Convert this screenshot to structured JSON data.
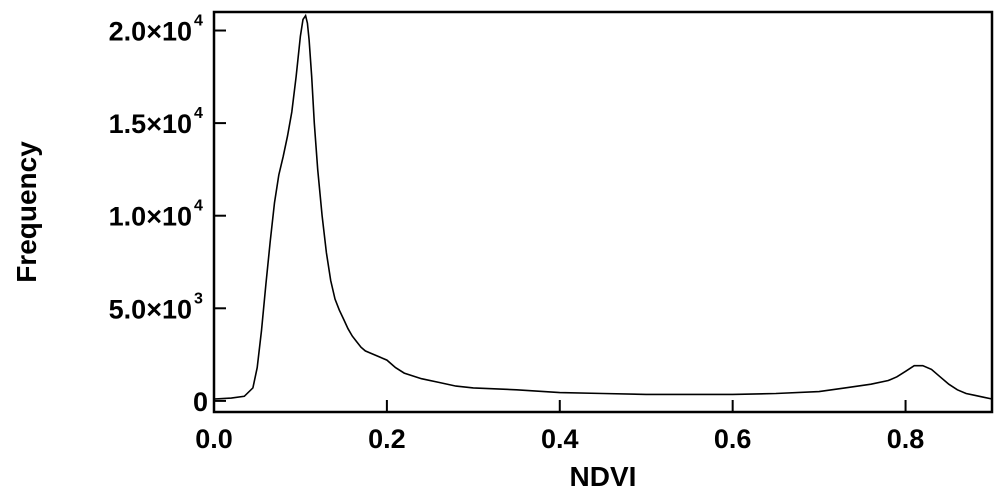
{
  "chart_data": {
    "type": "line",
    "title": "",
    "xlabel": "NDVI",
    "ylabel": "Frequency",
    "xlim": [
      0.0,
      0.9
    ],
    "ylim": [
      -600,
      21000
    ],
    "grid": false,
    "legend": "none",
    "line_color": "#000000",
    "x_ticks": [
      {
        "value": 0.0,
        "label": "0.0"
      },
      {
        "value": 0.2,
        "label": "0.2"
      },
      {
        "value": 0.4,
        "label": "0.4"
      },
      {
        "value": 0.6,
        "label": "0.6"
      },
      {
        "value": 0.8,
        "label": "0.8"
      }
    ],
    "y_ticks": [
      {
        "value": 0,
        "mantissa": "0",
        "exponent": ""
      },
      {
        "value": 5000,
        "mantissa": "5.0×10",
        "exponent": "3"
      },
      {
        "value": 10000,
        "mantissa": "1.0×10",
        "exponent": "4"
      },
      {
        "value": 15000,
        "mantissa": "1.5×10",
        "exponent": "4"
      },
      {
        "value": 20000,
        "mantissa": "2.0×10",
        "exponent": "4"
      }
    ],
    "series": [
      {
        "x": [
          0.0,
          0.02,
          0.035,
          0.045,
          0.05,
          0.055,
          0.06,
          0.065,
          0.07,
          0.075,
          0.08,
          0.085,
          0.09,
          0.095,
          0.1,
          0.103,
          0.106,
          0.108,
          0.11,
          0.113,
          0.116,
          0.12,
          0.125,
          0.13,
          0.135,
          0.14,
          0.145,
          0.15,
          0.155,
          0.16,
          0.165,
          0.17,
          0.175,
          0.18,
          0.19,
          0.2,
          0.21,
          0.22,
          0.24,
          0.26,
          0.28,
          0.3,
          0.35,
          0.4,
          0.45,
          0.5,
          0.55,
          0.6,
          0.65,
          0.7,
          0.73,
          0.76,
          0.78,
          0.79,
          0.8,
          0.81,
          0.82,
          0.83,
          0.84,
          0.85,
          0.86,
          0.87,
          0.88,
          0.89,
          0.9
        ],
        "y": [
          100,
          150,
          250,
          700,
          1800,
          3800,
          6300,
          8600,
          10700,
          12200,
          13200,
          14300,
          15600,
          17500,
          19700,
          20600,
          20800,
          20400,
          19500,
          17500,
          15000,
          12500,
          10000,
          8000,
          6500,
          5500,
          4900,
          4400,
          3900,
          3500,
          3200,
          2900,
          2700,
          2600,
          2400,
          2200,
          1800,
          1500,
          1200,
          1000,
          800,
          700,
          600,
          450,
          400,
          350,
          350,
          350,
          400,
          500,
          700,
          900,
          1100,
          1300,
          1600,
          1900,
          1900,
          1700,
          1300,
          900,
          600,
          400,
          300,
          200,
          100
        ]
      }
    ]
  }
}
